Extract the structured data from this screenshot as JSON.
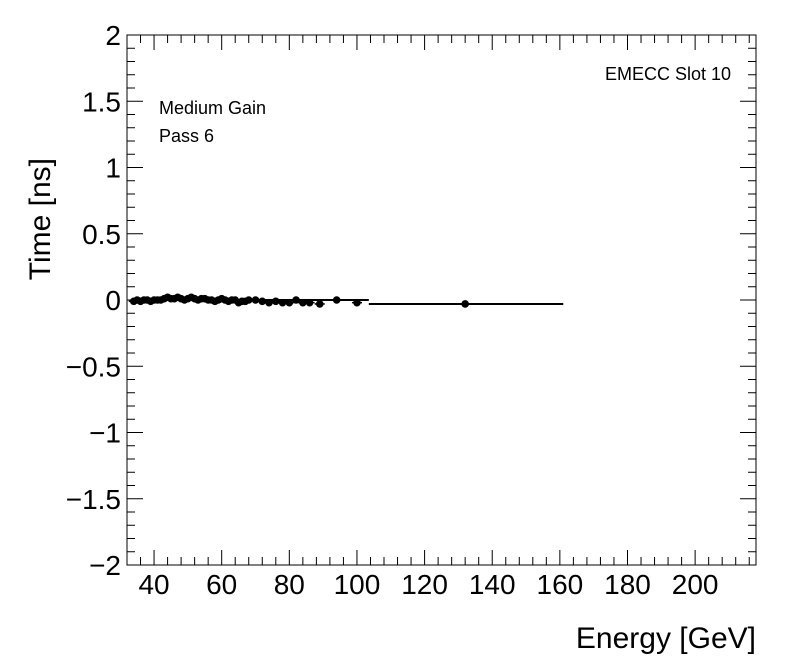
{
  "chart_data": {
    "type": "scatter",
    "title": "",
    "xlabel": "Energy [GeV]",
    "ylabel": "Time [ns]",
    "xlim": [
      32,
      218
    ],
    "ylim": [
      -2,
      2
    ],
    "x_ticks": [
      40,
      60,
      80,
      100,
      120,
      140,
      160,
      180,
      200
    ],
    "x_tick_labels": [
      "40",
      "60",
      "80",
      "100",
      "120",
      "140",
      "160",
      "180",
      "200"
    ],
    "y_ticks": [
      -2,
      -1.5,
      -1,
      -0.5,
      0,
      0.5,
      1,
      1.5,
      2
    ],
    "y_tick_labels": [
      "−2",
      "−1.5",
      "−1",
      "−0.5",
      "0",
      "0.5",
      "1",
      "1.5",
      "2"
    ],
    "annotations": {
      "slot": "EMECC Slot 10",
      "gain": "Medium Gain",
      "pass": "Pass 6"
    },
    "fit_segments": [
      {
        "x0": 33.5,
        "x1": 103.5,
        "y": 0.0
      },
      {
        "x0": 103.5,
        "x1": 161,
        "y": -0.03
      }
    ],
    "series": [
      {
        "name": "points",
        "x": [
          34,
          35,
          36,
          37,
          38,
          39,
          40,
          41,
          42,
          43,
          44,
          45,
          46,
          47,
          48,
          49,
          50,
          51,
          52,
          53,
          54,
          55,
          56,
          57,
          58,
          59,
          60,
          61,
          62,
          63,
          64,
          65,
          66,
          67,
          68,
          70,
          72,
          74,
          76,
          78,
          80,
          82,
          84,
          86,
          89,
          94,
          100,
          132
        ],
        "y": [
          -0.01,
          0.0,
          -0.01,
          0.0,
          0.0,
          -0.01,
          0.0,
          0.0,
          0.0,
          0.01,
          0.02,
          0.01,
          0.01,
          0.02,
          0.01,
          0.0,
          0.01,
          0.02,
          0.01,
          0.0,
          0.01,
          0.01,
          0.0,
          0.0,
          -0.01,
          0.0,
          0.01,
          0.0,
          -0.01,
          0.0,
          0.0,
          -0.02,
          -0.01,
          -0.01,
          0.0,
          0.0,
          -0.01,
          -0.02,
          -0.01,
          -0.02,
          -0.02,
          0.0,
          -0.02,
          -0.02,
          -0.03,
          0.0,
          -0.02,
          -0.03
        ]
      }
    ]
  }
}
